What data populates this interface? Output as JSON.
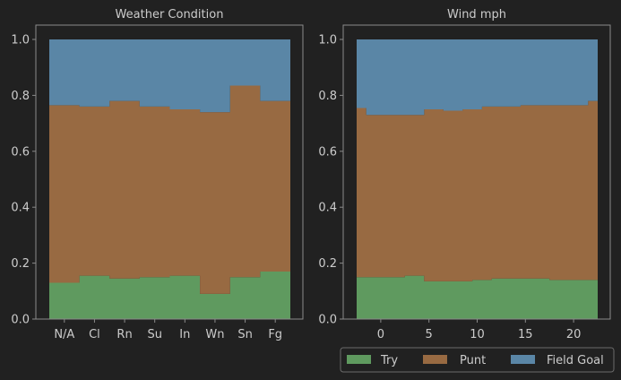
{
  "colors": {
    "background": "#212121",
    "frame": "#8a8a8a",
    "text": "#cccccc",
    "try": "#5f9a5f",
    "punt": "#986a42",
    "field_goal": "#5a86a6"
  },
  "legend": {
    "position": "bottom-right",
    "entries": [
      "Try",
      "Punt",
      "Field Goal"
    ]
  },
  "chart_data": [
    {
      "type": "area",
      "stacked": "normalized",
      "title": "Weather Condition",
      "xlabel": "",
      "ylabel": "",
      "ylim": [
        0,
        1
      ],
      "yticks": [
        "0.0",
        "0.2",
        "0.4",
        "0.6",
        "0.8",
        "1.0"
      ],
      "categories": [
        "N/A",
        "Cl",
        "Rn",
        "Su",
        "In",
        "Wn",
        "Sn",
        "Fg"
      ],
      "series": [
        {
          "name": "Try",
          "values": [
            0.13,
            0.155,
            0.145,
            0.15,
            0.155,
            0.09,
            0.15,
            0.17
          ]
        },
        {
          "name": "Punt",
          "values": [
            0.635,
            0.605,
            0.635,
            0.61,
            0.595,
            0.65,
            0.685,
            0.61
          ]
        },
        {
          "name": "Field Goal",
          "values": [
            0.235,
            0.24,
            0.22,
            0.24,
            0.25,
            0.26,
            0.165,
            0.22
          ]
        }
      ]
    },
    {
      "type": "area",
      "stacked": "normalized",
      "title": "Wind mph",
      "xlabel": "",
      "ylabel": "",
      "ylim": [
        0,
        1
      ],
      "xlim": [
        -2.5,
        22.5
      ],
      "xticks": [
        "0",
        "5",
        "10",
        "15",
        "20"
      ],
      "yticks": [
        "0.0",
        "0.2",
        "0.4",
        "0.6",
        "0.8",
        "1.0"
      ],
      "x": [
        -2,
        -1,
        0,
        1,
        2,
        3,
        4,
        5,
        6,
        7,
        8,
        9,
        10,
        11,
        12,
        13,
        14,
        15,
        16,
        17,
        18,
        19,
        20,
        21,
        22
      ],
      "series": [
        {
          "name": "Try",
          "values": [
            0.15,
            0.15,
            0.15,
            0.15,
            0.15,
            0.155,
            0.155,
            0.135,
            0.135,
            0.135,
            0.135,
            0.135,
            0.14,
            0.14,
            0.145,
            0.145,
            0.145,
            0.145,
            0.145,
            0.145,
            0.14,
            0.14,
            0.14,
            0.14,
            0.14
          ]
        },
        {
          "name": "Punt",
          "values": [
            0.605,
            0.58,
            0.58,
            0.58,
            0.58,
            0.575,
            0.575,
            0.615,
            0.615,
            0.61,
            0.61,
            0.615,
            0.61,
            0.62,
            0.615,
            0.615,
            0.615,
            0.62,
            0.62,
            0.62,
            0.625,
            0.625,
            0.625,
            0.625,
            0.64
          ]
        },
        {
          "name": "Field Goal",
          "values": [
            0.245,
            0.27,
            0.27,
            0.27,
            0.27,
            0.27,
            0.27,
            0.25,
            0.25,
            0.255,
            0.255,
            0.25,
            0.25,
            0.24,
            0.24,
            0.24,
            0.24,
            0.235,
            0.235,
            0.235,
            0.235,
            0.235,
            0.235,
            0.235,
            0.22
          ]
        }
      ]
    }
  ]
}
